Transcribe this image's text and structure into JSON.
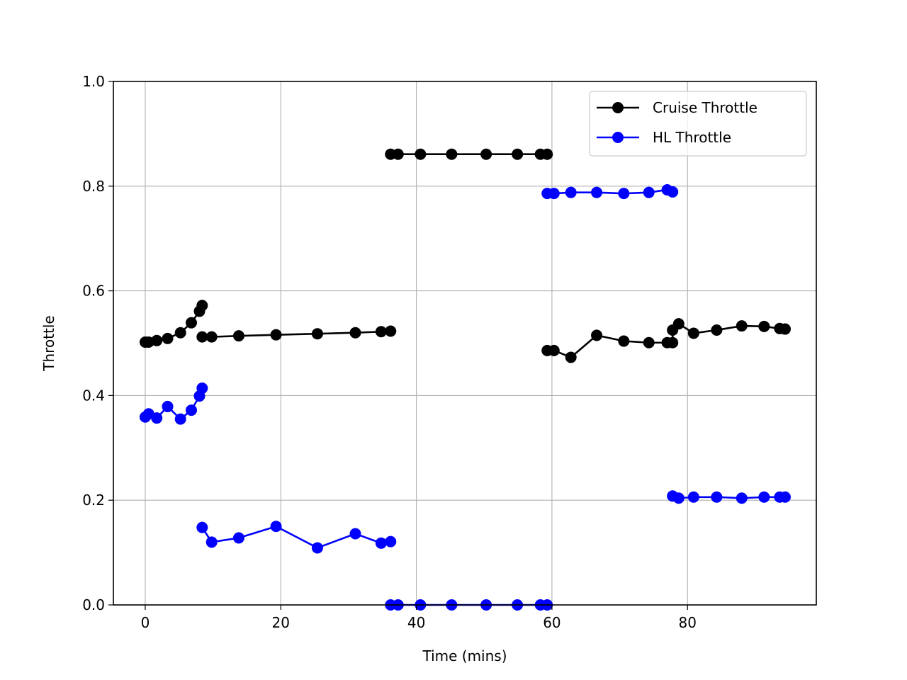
{
  "chart_data": {
    "type": "line",
    "title": "",
    "xlabel": "Time (mins)",
    "ylabel": "Throttle",
    "xlim": [
      -4.7,
      99.0
    ],
    "ylim": [
      0.0,
      1.0
    ],
    "xticks": [
      0,
      20,
      40,
      60,
      80
    ],
    "yticks": [
      0.0,
      0.2,
      0.4,
      0.6,
      0.8,
      1.0
    ],
    "xtick_labels": [
      "0",
      "20",
      "40",
      "60",
      "80"
    ],
    "ytick_labels": [
      "0.0",
      "0.2",
      "0.4",
      "0.6",
      "0.8",
      "1.0"
    ],
    "grid": true,
    "legend_position": "top-right",
    "series": [
      {
        "name": "Cruise Throttle",
        "color": "#000000",
        "marker": "circle",
        "segments": [
          {
            "x": [
              0.0,
              0.5,
              1.7,
              3.3,
              5.2,
              6.8,
              8.0,
              8.4
            ],
            "y": [
              0.502,
              0.502,
              0.505,
              0.509,
              0.52,
              0.539,
              0.561,
              0.572
            ]
          },
          {
            "x": [
              8.4,
              9.8,
              13.8,
              19.3,
              25.4,
              31.0,
              34.8,
              36.2
            ],
            "y": [
              0.512,
              0.512,
              0.514,
              0.516,
              0.518,
              0.52,
              0.522,
              0.523
            ]
          },
          {
            "x": [
              36.2,
              37.3,
              40.6,
              45.2,
              50.3,
              54.9,
              58.3,
              59.3
            ],
            "y": [
              0.861,
              0.861,
              0.861,
              0.861,
              0.861,
              0.861,
              0.861,
              0.861
            ]
          },
          {
            "x": [
              59.3,
              60.3,
              62.8,
              66.6,
              70.6,
              74.3,
              77.0,
              77.8,
              77.8,
              78.7,
              80.9,
              84.3,
              88.0,
              91.3,
              93.6,
              94.4
            ],
            "y": [
              0.486,
              0.486,
              0.473,
              0.515,
              0.504,
              0.501,
              0.501,
              0.501,
              0.525,
              0.537,
              0.519,
              0.525,
              0.533,
              0.532,
              0.528,
              0.527
            ]
          }
        ]
      },
      {
        "name": "HL Throttle",
        "color": "#0000ff",
        "marker": "circle",
        "segments": [
          {
            "x": [
              0.0,
              0.5,
              1.7,
              3.3,
              5.2,
              6.8,
              8.0,
              8.4
            ],
            "y": [
              0.359,
              0.365,
              0.357,
              0.379,
              0.355,
              0.372,
              0.399,
              0.414
            ]
          },
          {
            "x": [
              8.4,
              9.8,
              13.8,
              19.3,
              25.4,
              31.0,
              34.8,
              36.2
            ],
            "y": [
              0.148,
              0.12,
              0.128,
              0.15,
              0.109,
              0.136,
              0.118,
              0.121
            ]
          },
          {
            "x": [
              36.2,
              37.3,
              40.6,
              45.2,
              50.3,
              54.9,
              58.3,
              59.3
            ],
            "y": [
              0.0,
              0.0,
              0.0,
              0.0,
              0.0,
              0.0,
              0.0,
              0.0
            ]
          },
          {
            "x": [
              59.3,
              60.3,
              62.8,
              66.6,
              70.6,
              74.3,
              77.0,
              77.8
            ],
            "y": [
              0.786,
              0.786,
              0.788,
              0.788,
              0.786,
              0.788,
              0.793,
              0.789
            ]
          },
          {
            "x": [
              77.8,
              78.7,
              80.9,
              84.3,
              88.0,
              91.3,
              93.6,
              94.4
            ],
            "y": [
              0.208,
              0.204,
              0.206,
              0.206,
              0.204,
              0.206,
              0.206,
              0.206
            ]
          }
        ]
      }
    ]
  }
}
